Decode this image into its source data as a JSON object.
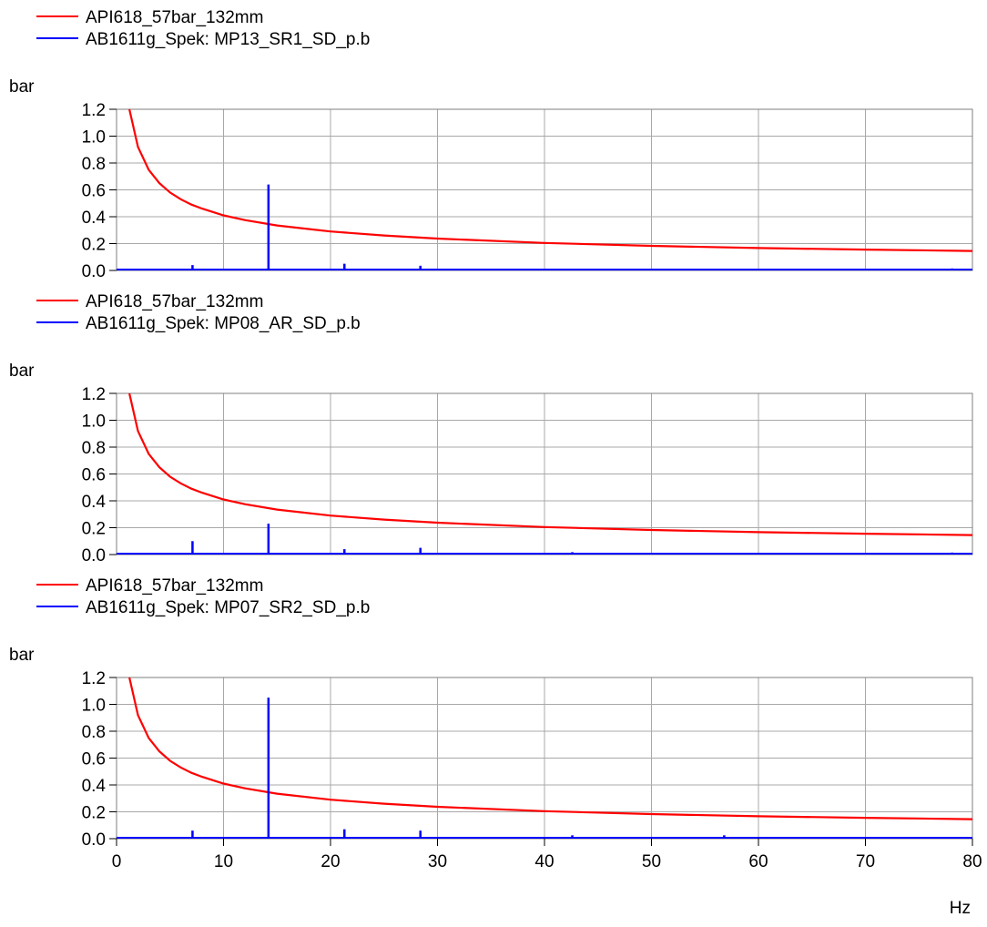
{
  "chart_data": [
    {
      "type": "line",
      "ylabel": "bar",
      "xlim": [
        0,
        80
      ],
      "ylim": [
        0,
        1.2
      ],
      "yticks": [
        "0.0",
        "0.2",
        "0.4",
        "0.6",
        "0.8",
        "1.0",
        "1.2"
      ],
      "grid": true,
      "legend_position": "top-left",
      "series": [
        {
          "name": "API618_57bar_132mm",
          "color": "#ff0000",
          "kind": "limit_curve",
          "x": [
            1.2,
            2,
            3,
            4,
            5,
            6,
            7,
            8,
            10,
            12,
            15,
            20,
            25,
            30,
            40,
            50,
            60,
            70,
            80
          ],
          "y": [
            1.2,
            0.92,
            0.75,
            0.65,
            0.58,
            0.53,
            0.49,
            0.46,
            0.41,
            0.375,
            0.335,
            0.29,
            0.26,
            0.237,
            0.205,
            0.183,
            0.167,
            0.155,
            0.145
          ]
        },
        {
          "name": "AB1611g_Spek: MP13_SR1_SD_p.b",
          "color": "#0000ff",
          "kind": "spectrum",
          "x": [
            7.1,
            14.2,
            21.3,
            28.4,
            35.5,
            42.6,
            49.7,
            56.8,
            63.9,
            71.0,
            78.1
          ],
          "y": [
            0.04,
            0.64,
            0.05,
            0.035,
            0.01,
            0.012,
            0.008,
            0.006,
            0.006,
            0.01,
            0.015
          ]
        }
      ]
    },
    {
      "type": "line",
      "ylabel": "bar",
      "xlim": [
        0,
        80
      ],
      "ylim": [
        0,
        1.2
      ],
      "yticks": [
        "0.0",
        "0.2",
        "0.4",
        "0.6",
        "0.8",
        "1.0",
        "1.2"
      ],
      "grid": true,
      "legend_position": "top-left",
      "series": [
        {
          "name": "API618_57bar_132mm",
          "color": "#ff0000",
          "kind": "limit_curve",
          "x": [
            1.2,
            2,
            3,
            4,
            5,
            6,
            7,
            8,
            10,
            12,
            15,
            20,
            25,
            30,
            40,
            50,
            60,
            70,
            80
          ],
          "y": [
            1.2,
            0.92,
            0.75,
            0.65,
            0.58,
            0.53,
            0.49,
            0.46,
            0.41,
            0.375,
            0.335,
            0.29,
            0.26,
            0.237,
            0.205,
            0.183,
            0.167,
            0.155,
            0.145
          ]
        },
        {
          "name": "AB1611g_Spek: MP08_AR_SD_p.b",
          "color": "#0000ff",
          "kind": "spectrum",
          "x": [
            7.1,
            14.2,
            21.3,
            28.4,
            35.5,
            42.6,
            49.7,
            56.8,
            63.9,
            71.0,
            78.1
          ],
          "y": [
            0.1,
            0.23,
            0.04,
            0.05,
            0.01,
            0.018,
            0.008,
            0.01,
            0.006,
            0.008,
            0.015
          ]
        }
      ]
    },
    {
      "type": "line",
      "ylabel": "bar",
      "xlabel": "Hz",
      "xlim": [
        0,
        80
      ],
      "ylim": [
        0,
        1.2
      ],
      "xticks": [
        "0",
        "10",
        "20",
        "30",
        "40",
        "50",
        "60",
        "70",
        "80"
      ],
      "yticks": [
        "0.0",
        "0.2",
        "0.4",
        "0.6",
        "0.8",
        "1.0",
        "1.2"
      ],
      "grid": true,
      "legend_position": "top-left",
      "series": [
        {
          "name": "API618_57bar_132mm",
          "color": "#ff0000",
          "kind": "limit_curve",
          "x": [
            1.2,
            2,
            3,
            4,
            5,
            6,
            7,
            8,
            10,
            12,
            15,
            20,
            25,
            30,
            40,
            50,
            60,
            70,
            80
          ],
          "y": [
            1.2,
            0.92,
            0.75,
            0.65,
            0.58,
            0.53,
            0.49,
            0.46,
            0.41,
            0.375,
            0.335,
            0.29,
            0.26,
            0.237,
            0.205,
            0.183,
            0.167,
            0.155,
            0.145
          ]
        },
        {
          "name": "AB1611g_Spek: MP07_SR2_SD_p.b",
          "color": "#0000ff",
          "kind": "spectrum",
          "x": [
            7.1,
            14.2,
            21.3,
            28.4,
            35.5,
            42.6,
            49.7,
            56.8,
            63.9,
            71.0,
            78.1
          ],
          "y": [
            0.06,
            1.05,
            0.07,
            0.06,
            0.01,
            0.025,
            0.01,
            0.025,
            0.008,
            0.012,
            0.012
          ]
        }
      ]
    }
  ]
}
